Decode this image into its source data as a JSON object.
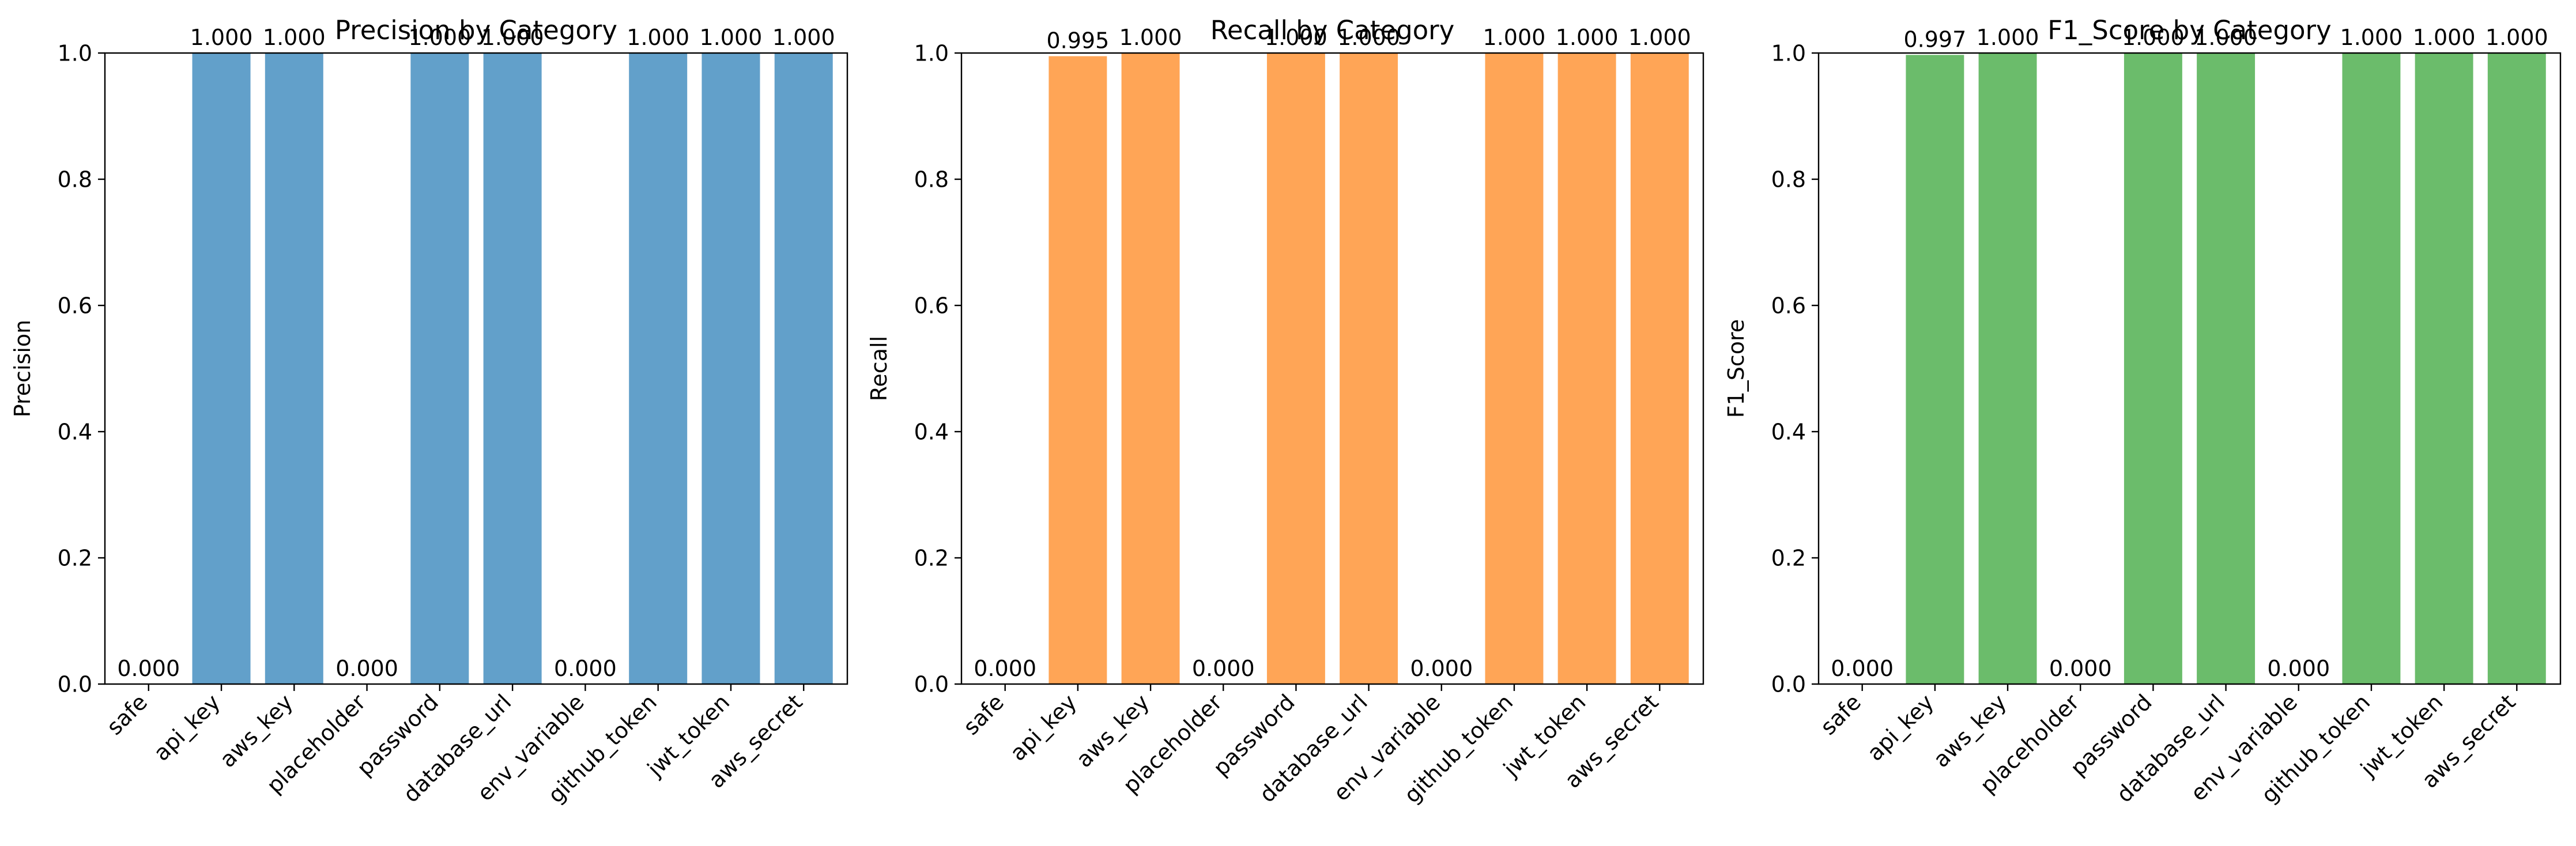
{
  "figure": {
    "panel_count": 3
  },
  "chart_data": [
    {
      "type": "bar",
      "title": "Precision by Category",
      "xlabel": "",
      "ylabel": "Precision",
      "ylim": [
        0,
        1.0
      ],
      "yticks": [
        "0.0",
        "0.2",
        "0.4",
        "0.6",
        "0.8",
        "1.0"
      ],
      "ytick_values": [
        0.0,
        0.2,
        0.4,
        0.6,
        0.8,
        1.0
      ],
      "grid": false,
      "color": "#1f77b4",
      "categories": [
        "safe",
        "api_key",
        "aws_key",
        "placeholder",
        "password",
        "database_url",
        "env_variable",
        "github_token",
        "jwt_token",
        "aws_secret"
      ],
      "values": [
        0.0,
        1.0,
        1.0,
        0.0,
        1.0,
        1.0,
        0.0,
        1.0,
        1.0,
        1.0
      ],
      "value_labels": [
        "0.000",
        "1.000",
        "1.000",
        "0.000",
        "1.000",
        "1.000",
        "0.000",
        "1.000",
        "1.000",
        "1.000"
      ]
    },
    {
      "type": "bar",
      "title": "Recall by Category",
      "xlabel": "",
      "ylabel": "Recall",
      "ylim": [
        0,
        1.0
      ],
      "yticks": [
        "0.0",
        "0.2",
        "0.4",
        "0.6",
        "0.8",
        "1.0"
      ],
      "ytick_values": [
        0.0,
        0.2,
        0.4,
        0.6,
        0.8,
        1.0
      ],
      "grid": false,
      "color": "#ff7f0e",
      "categories": [
        "safe",
        "api_key",
        "aws_key",
        "placeholder",
        "password",
        "database_url",
        "env_variable",
        "github_token",
        "jwt_token",
        "aws_secret"
      ],
      "values": [
        0.0,
        0.995,
        1.0,
        0.0,
        1.0,
        1.0,
        0.0,
        1.0,
        1.0,
        1.0
      ],
      "value_labels": [
        "0.000",
        "0.995",
        "1.000",
        "0.000",
        "1.000",
        "1.000",
        "0.000",
        "1.000",
        "1.000",
        "1.000"
      ]
    },
    {
      "type": "bar",
      "title": "F1_Score by Category",
      "xlabel": "",
      "ylabel": "F1_Score",
      "ylim": [
        0,
        1.0
      ],
      "yticks": [
        "0.0",
        "0.2",
        "0.4",
        "0.6",
        "0.8",
        "1.0"
      ],
      "ytick_values": [
        0.0,
        0.2,
        0.4,
        0.6,
        0.8,
        1.0
      ],
      "grid": false,
      "color": "#2ca02c",
      "categories": [
        "safe",
        "api_key",
        "aws_key",
        "placeholder",
        "password",
        "database_url",
        "env_variable",
        "github_token",
        "jwt_token",
        "aws_secret"
      ],
      "values": [
        0.0,
        0.997,
        1.0,
        0.0,
        1.0,
        1.0,
        0.0,
        1.0,
        1.0,
        1.0
      ],
      "value_labels": [
        "0.000",
        "0.997",
        "1.000",
        "0.000",
        "1.000",
        "1.000",
        "0.000",
        "1.000",
        "1.000",
        "1.000"
      ]
    }
  ]
}
